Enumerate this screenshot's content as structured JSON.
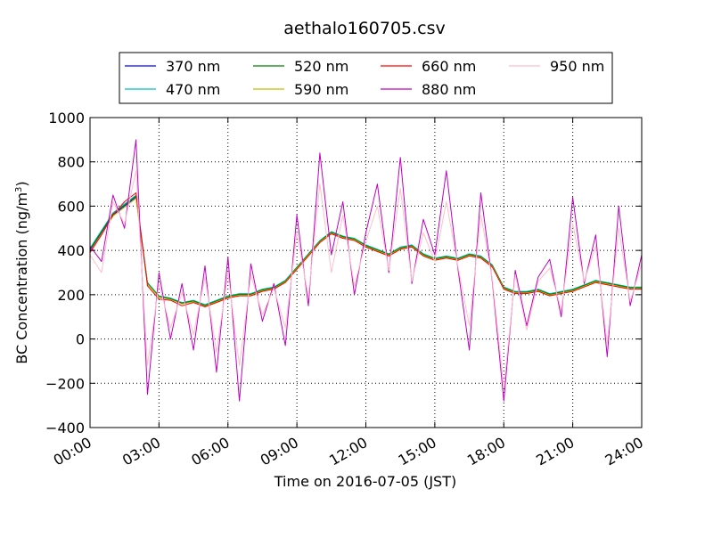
{
  "chart_data": {
    "type": "line",
    "title": "aethalo160705.csv",
    "xlabel": "Time on 2016-07-05 (JST)",
    "ylabel_prefix": "BC Concentration (ng/m",
    "ylabel_sup": "3",
    "ylabel_suffix": ")",
    "xlim": [
      "00:00",
      "24:00"
    ],
    "ylim": [
      -400,
      1000
    ],
    "x_ticks": [
      "00:00",
      "03:00",
      "06:00",
      "09:00",
      "12:00",
      "15:00",
      "18:00",
      "21:00",
      "24:00"
    ],
    "y_ticks": [
      "−400",
      "−200",
      "0",
      "200",
      "400",
      "600",
      "800",
      "1000"
    ],
    "grid": true,
    "legend_position": "top-center",
    "x": [
      "00:00",
      "00:30",
      "01:00",
      "01:30",
      "02:00",
      "02:30",
      "03:00",
      "03:30",
      "04:00",
      "04:30",
      "05:00",
      "05:30",
      "06:00",
      "06:30",
      "07:00",
      "07:30",
      "08:00",
      "08:30",
      "09:00",
      "09:30",
      "10:00",
      "10:30",
      "11:00",
      "11:30",
      "12:00",
      "12:30",
      "13:00",
      "13:30",
      "14:00",
      "14:30",
      "15:00",
      "15:30",
      "16:00",
      "16:30",
      "17:00",
      "17:30",
      "18:00",
      "18:30",
      "19:00",
      "19:30",
      "20:00",
      "20:30",
      "21:00",
      "21:30",
      "22:00",
      "22:30",
      "23:00",
      "23:30",
      "24:00"
    ],
    "series": [
      {
        "name": "370 nm",
        "color": "#0000ff",
        "values": [
          400,
          480,
          560,
          600,
          640,
          250,
          190,
          180,
          160,
          170,
          150,
          170,
          190,
          200,
          200,
          220,
          230,
          260,
          320,
          380,
          440,
          480,
          460,
          450,
          420,
          400,
          380,
          410,
          420,
          380,
          360,
          370,
          360,
          380,
          370,
          330,
          230,
          210,
          210,
          220,
          200,
          210,
          220,
          240,
          260,
          250,
          240,
          230,
          230
        ]
      },
      {
        "name": "470 nm",
        "color": "#00bfbf",
        "values": [
          410,
          490,
          570,
          610,
          650,
          255,
          195,
          185,
          165,
          175,
          155,
          175,
          195,
          205,
          205,
          225,
          235,
          265,
          325,
          385,
          445,
          485,
          465,
          455,
          425,
          405,
          385,
          415,
          425,
          385,
          365,
          375,
          365,
          385,
          375,
          335,
          235,
          215,
          215,
          225,
          205,
          215,
          225,
          245,
          265,
          255,
          245,
          235,
          235
        ]
      },
      {
        "name": "520 nm",
        "color": "#008000",
        "values": [
          405,
          485,
          565,
          605,
          645,
          252,
          192,
          182,
          162,
          172,
          152,
          172,
          192,
          202,
          202,
          222,
          232,
          262,
          322,
          382,
          442,
          482,
          462,
          452,
          422,
          402,
          382,
          412,
          422,
          382,
          362,
          372,
          362,
          382,
          372,
          332,
          232,
          212,
          212,
          222,
          202,
          212,
          222,
          242,
          262,
          252,
          242,
          232,
          232
        ]
      },
      {
        "name": "590 nm",
        "color": "#bfbf00",
        "values": [
          395,
          475,
          555,
          595,
          635,
          248,
          188,
          178,
          158,
          168,
          148,
          168,
          188,
          198,
          198,
          218,
          228,
          258,
          318,
          378,
          438,
          478,
          458,
          448,
          418,
          398,
          378,
          408,
          418,
          378,
          358,
          368,
          358,
          378,
          368,
          328,
          228,
          208,
          208,
          218,
          198,
          208,
          218,
          238,
          258,
          248,
          238,
          228,
          228
        ]
      },
      {
        "name": "660 nm",
        "color": "#ff0000",
        "values": [
          390,
          470,
          560,
          620,
          660,
          240,
          180,
          175,
          150,
          165,
          145,
          165,
          185,
          195,
          195,
          215,
          225,
          255,
          315,
          375,
          435,
          475,
          455,
          445,
          415,
          395,
          375,
          405,
          415,
          375,
          355,
          365,
          355,
          375,
          365,
          325,
          225,
          205,
          205,
          215,
          195,
          205,
          215,
          235,
          255,
          245,
          235,
          225,
          225
        ]
      },
      {
        "name": "880 nm",
        "color": "#bf00bf",
        "values": [
          420,
          350,
          650,
          500,
          900,
          -250,
          300,
          0,
          250,
          -50,
          330,
          -150,
          370,
          -280,
          340,
          80,
          250,
          -30,
          560,
          150,
          840,
          380,
          620,
          200,
          480,
          700,
          300,
          820,
          250,
          540,
          380,
          760,
          320,
          -50,
          660,
          260,
          -280,
          310,
          60,
          280,
          360,
          100,
          640,
          250,
          470,
          -80,
          600,
          150,
          380
        ]
      },
      {
        "name": "950 nm",
        "color": "#ffc0cb",
        "values": [
          380,
          300,
          620,
          520,
          760,
          -120,
          250,
          50,
          210,
          20,
          280,
          -60,
          300,
          -120,
          290,
          110,
          230,
          50,
          480,
          190,
          700,
          300,
          560,
          240,
          440,
          600,
          310,
          680,
          260,
          480,
          350,
          620,
          330,
          60,
          560,
          270,
          -220,
          290,
          40,
          260,
          320,
          130,
          520,
          260,
          420,
          -20,
          500,
          170,
          340
        ]
      }
    ]
  }
}
